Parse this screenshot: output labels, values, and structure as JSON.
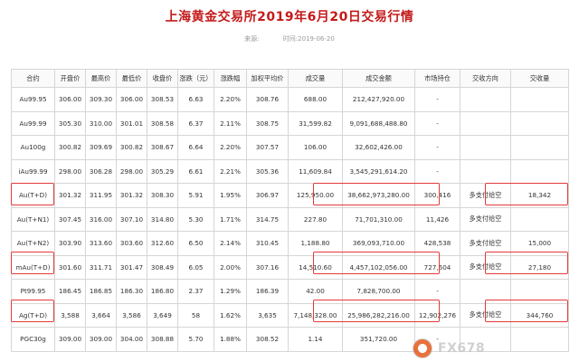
{
  "title": "上海黄金交易所2019年6月20日交易行情",
  "meta": {
    "source_label": "来源:",
    "time_label": "时间:",
    "time_value": "2019-06-20"
  },
  "table": {
    "headers": [
      "合约",
      "开盘价",
      "最高价",
      "最低价",
      "收盘价",
      "涨跌（元）",
      "涨跌幅",
      "加权平均价",
      "成交量",
      "成交金额",
      "市场持仓",
      "交收方向",
      "交收量"
    ],
    "rows": [
      [
        "Au99.95",
        "306.00",
        "309.30",
        "306.00",
        "308.53",
        "6.63",
        "2.20%",
        "308.76",
        "688.00",
        "212,427,920.00",
        "-",
        "",
        ""
      ],
      [
        "Au99.99",
        "305.30",
        "310.00",
        "301.01",
        "308.58",
        "6.37",
        "2.11%",
        "308.75",
        "31,599.82",
        "9,091,688,488.80",
        "-",
        "",
        ""
      ],
      [
        "Au100g",
        "300.82",
        "309.69",
        "300.82",
        "308.67",
        "6.64",
        "2.20%",
        "307.57",
        "106.00",
        "32,602,426.00",
        "-",
        "",
        ""
      ],
      [
        "iAu99.99",
        "298.00",
        "306.28",
        "298.00",
        "305.29",
        "6.61",
        "2.21%",
        "305.36",
        "11,609.84",
        "3,545,291,614.20",
        "-",
        "",
        ""
      ],
      [
        "Au(T+D)",
        "301.32",
        "311.95",
        "301.32",
        "308.30",
        "5.91",
        "1.95%",
        "306.97",
        "125,950.00",
        "38,662,973,280.00",
        "300,416",
        "多支付给空",
        "18,342"
      ],
      [
        "Au(T+N1)",
        "307.45",
        "316.00",
        "307.10",
        "314.80",
        "5.30",
        "1.71%",
        "314.75",
        "227.80",
        "71,701,310.00",
        "11,426",
        "多支付给空",
        ""
      ],
      [
        "Au(T+N2)",
        "303.90",
        "313.60",
        "303.60",
        "312.60",
        "6.50",
        "2.14%",
        "310.45",
        "1,188.80",
        "369,093,710.00",
        "428,538",
        "多支付给空",
        "15,000"
      ],
      [
        "mAu(T+D)",
        "301.60",
        "311.71",
        "301.47",
        "308.49",
        "6.05",
        "2.00%",
        "307.16",
        "14,510.60",
        "4,457,102,056.00",
        "727,604",
        "多支付给空",
        "27,180"
      ],
      [
        "Pt99.95",
        "186.45",
        "186.85",
        "186.30",
        "186.80",
        "2.37",
        "1.29%",
        "186.39",
        "42.00",
        "7,828,700.00",
        "-",
        "",
        ""
      ],
      [
        "Ag(T+D)",
        "3,588",
        "3,664",
        "3,586",
        "3,649",
        "58",
        "1.62%",
        "3,635",
        "7,148,328.00",
        "25,986,282,216.00",
        "12,902,276",
        "多支付给空",
        "344,760"
      ],
      [
        "PGC30g",
        "309.00",
        "309.00",
        "304.00",
        "308.88",
        "5.70",
        "1.88%",
        "308.52",
        "1.14",
        "351,720.00",
        "-",
        "",
        ""
      ]
    ]
  },
  "highlight_color": "#e23a3a",
  "watermark": {
    "text": "FX678",
    "icon": "fx678-logo-icon"
  }
}
